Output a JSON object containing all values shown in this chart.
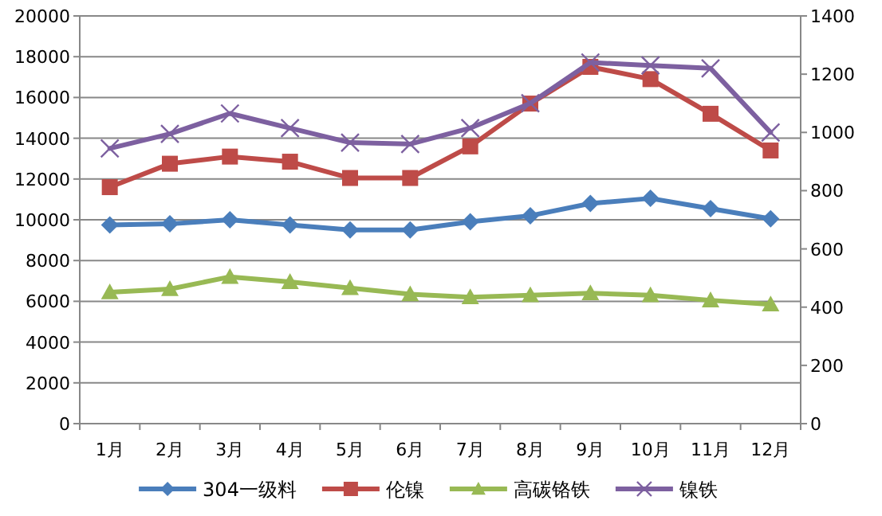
{
  "chart_data": {
    "type": "line",
    "categories": [
      "1月",
      "2月",
      "3月",
      "4月",
      "5月",
      "6月",
      "7月",
      "8月",
      "9月",
      "10月",
      "11月",
      "12月"
    ],
    "series": [
      {
        "name": "304一级料",
        "color": "#4a7ebb",
        "marker": "diamond",
        "values": [
          9750,
          9800,
          10000,
          9750,
          9500,
          9500,
          9900,
          10200,
          10800,
          11050,
          10550,
          10050
        ]
      },
      {
        "name": "伦镍",
        "color": "#be4b48",
        "marker": "square",
        "values": [
          11600,
          12750,
          13100,
          12850,
          12050,
          12050,
          13600,
          15700,
          17500,
          16900,
          15200,
          13400
        ]
      },
      {
        "name": "高碳铬铁",
        "color": "#98b954",
        "marker": "triangle",
        "values": [
          6450,
          6600,
          7200,
          6950,
          6650,
          6350,
          6200,
          6300,
          6400,
          6300,
          6050,
          5850
        ]
      },
      {
        "name": "镍铁",
        "color": "#7d60a0",
        "marker": "cross",
        "axis": "y2",
        "values": [
          945,
          995,
          1065,
          1015,
          965,
          960,
          1015,
          1100,
          1240,
          1230,
          1220,
          1000
        ]
      }
    ],
    "ylim": [
      0,
      20000
    ],
    "yticks": [
      0,
      2000,
      4000,
      6000,
      8000,
      10000,
      12000,
      14000,
      16000,
      18000,
      20000
    ],
    "y2lim": [
      0,
      1400
    ],
    "y2ticks": [
      0,
      200,
      400,
      600,
      800,
      1000,
      1200,
      1400
    ],
    "grid": "y",
    "legend": "bottom",
    "line_style": "solid"
  }
}
